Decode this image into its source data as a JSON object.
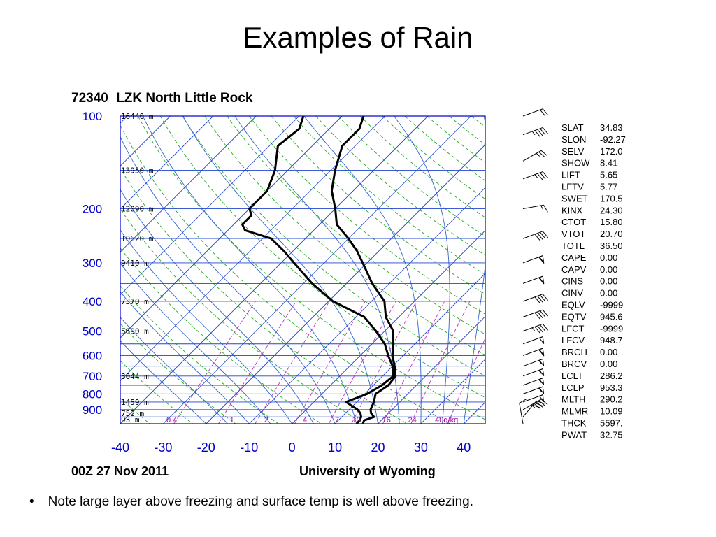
{
  "slide": {
    "title": "Examples of Rain",
    "note": "Note large layer above freezing and surface temp is well above freezing."
  },
  "chart_data": {
    "type": "line",
    "station_id": "72340",
    "station_name": "LZK North Little Rock",
    "time": "00Z 27 Nov 2011",
    "source": "University of Wyoming",
    "x_axis_ticks": [
      -40,
      -30,
      -20,
      -10,
      0,
      10,
      20,
      30,
      40
    ],
    "xlim": [
      -40,
      45
    ],
    "pressure_ticks": [
      100,
      200,
      300,
      400,
      500,
      600,
      700,
      800,
      900
    ],
    "plim": [
      100,
      1000
    ],
    "pressure_scale": "log",
    "height_labels": [
      {
        "p": 100,
        "text": "16440 m"
      },
      {
        "p": 150,
        "text": "13950 m"
      },
      {
        "p": 200,
        "text": "12090 m"
      },
      {
        "p": 250,
        "text": "10620 m"
      },
      {
        "p": 300,
        "text": "9410 m"
      },
      {
        "p": 400,
        "text": "7370 m"
      },
      {
        "p": 500,
        "text": "5690 m"
      },
      {
        "p": 700,
        "text": "3044 m"
      },
      {
        "p": 850,
        "text": "1459 m"
      },
      {
        "p": 925,
        "text": "752 m"
      },
      {
        "p": 1000,
        "text": "93 m"
      }
    ],
    "mixing_ratio_labels": [
      {
        "t": -28,
        "text": "0.4"
      },
      {
        "t": -14,
        "text": "1"
      },
      {
        "t": -6,
        "text": "2"
      },
      {
        "t": 3,
        "text": "4"
      },
      {
        "t": 10.5,
        "text": "7"
      },
      {
        "t": 15,
        "text": "10"
      },
      {
        "t": 22,
        "text": "16"
      },
      {
        "t": 28,
        "text": "24"
      },
      {
        "t": 36,
        "text": "40g/kg"
      }
    ],
    "series": [
      {
        "color": "#000000",
        "points": [
          {
            "p": 1000,
            "t": 16.5
          },
          {
            "p": 975,
            "t": 16.0
          },
          {
            "p": 950,
            "t": 17.5
          },
          {
            "p": 925,
            "t": 16.0
          },
          {
            "p": 900,
            "t": 15.0
          },
          {
            "p": 850,
            "t": 14.0
          },
          {
            "p": 800,
            "t": 12.5
          },
          {
            "p": 750,
            "t": 13.5
          },
          {
            "p": 700,
            "t": 13.0
          },
          {
            "p": 650,
            "t": 10.5
          },
          {
            "p": 600,
            "t": 7.5
          },
          {
            "p": 550,
            "t": 5.0
          },
          {
            "p": 500,
            "t": 2.0
          },
          {
            "p": 450,
            "t": -3.0
          },
          {
            "p": 400,
            "t": -7.0
          },
          {
            "p": 350,
            "t": -14.0
          },
          {
            "p": 300,
            "t": -21.0
          },
          {
            "p": 275,
            "t": -25.0
          },
          {
            "p": 250,
            "t": -30.0
          },
          {
            "p": 225,
            "t": -36.0
          },
          {
            "p": 200,
            "t": -40.0
          },
          {
            "p": 175,
            "t": -45.0
          },
          {
            "p": 150,
            "t": -49.0
          },
          {
            "p": 125,
            "t": -53.0
          },
          {
            "p": 110,
            "t": -53.0
          },
          {
            "p": 100,
            "t": -55.0
          }
        ]
      },
      {
        "color": "#000000",
        "points": [
          {
            "p": 1000,
            "t": 15.0
          },
          {
            "p": 975,
            "t": 15.0
          },
          {
            "p": 950,
            "t": 14.5
          },
          {
            "p": 925,
            "t": 13.5
          },
          {
            "p": 900,
            "t": 12.0
          },
          {
            "p": 850,
            "t": 7.5
          },
          {
            "p": 800,
            "t": 10.5
          },
          {
            "p": 750,
            "t": 12.0
          },
          {
            "p": 700,
            "t": 12.5
          },
          {
            "p": 650,
            "t": 10.0
          },
          {
            "p": 600,
            "t": 6.5
          },
          {
            "p": 550,
            "t": 3.0
          },
          {
            "p": 500,
            "t": -2.0
          },
          {
            "p": 450,
            "t": -8.0
          },
          {
            "p": 400,
            "t": -19.0
          },
          {
            "p": 350,
            "t": -28.0
          },
          {
            "p": 300,
            "t": -37.0
          },
          {
            "p": 275,
            "t": -42.0
          },
          {
            "p": 250,
            "t": -48.0
          },
          {
            "p": 235,
            "t": -56.0
          },
          {
            "p": 225,
            "t": -58.0
          },
          {
            "p": 210,
            "t": -58.0
          },
          {
            "p": 200,
            "t": -60.0
          },
          {
            "p": 175,
            "t": -60.0
          },
          {
            "p": 150,
            "t": -63.0
          },
          {
            "p": 125,
            "t": -68.0
          },
          {
            "p": 110,
            "t": -67.0
          },
          {
            "p": 100,
            "t": -69.0
          }
        ]
      }
    ],
    "wind_barbs": [
      {
        "p": 1000,
        "dir": 170,
        "kt": 10
      },
      {
        "p": 950,
        "dir": 220,
        "kt": 30
      },
      {
        "p": 900,
        "dir": 240,
        "kt": 45
      },
      {
        "p": 850,
        "dir": 250,
        "kt": 50
      },
      {
        "p": 800,
        "dir": 250,
        "kt": 55
      },
      {
        "p": 750,
        "dir": 250,
        "kt": 55
      },
      {
        "p": 700,
        "dir": 250,
        "kt": 55
      },
      {
        "p": 650,
        "dir": 250,
        "kt": 55
      },
      {
        "p": 600,
        "dir": 250,
        "kt": 60
      },
      {
        "p": 550,
        "dir": 250,
        "kt": 50
      },
      {
        "p": 500,
        "dir": 250,
        "kt": 45
      },
      {
        "p": 450,
        "dir": 250,
        "kt": 40
      },
      {
        "p": 400,
        "dir": 250,
        "kt": 40
      },
      {
        "p": 350,
        "dir": 250,
        "kt": 60
      },
      {
        "p": 300,
        "dir": 250,
        "kt": 60
      },
      {
        "p": 250,
        "dir": 250,
        "kt": 40
      },
      {
        "p": 200,
        "dir": 260,
        "kt": 15
      },
      {
        "p": 160,
        "dir": 250,
        "kt": 35
      },
      {
        "p": 140,
        "dir": 240,
        "kt": 25
      },
      {
        "p": 115,
        "dir": 250,
        "kt": 45
      },
      {
        "p": 100,
        "dir": 250,
        "kt": 20
      }
    ],
    "indices": [
      {
        "name": "SLAT",
        "value": "34.83"
      },
      {
        "name": "SLON",
        "value": "-92.27"
      },
      {
        "name": "SELV",
        "value": "172.0"
      },
      {
        "name": "SHOW",
        "value": "8.41"
      },
      {
        "name": "LIFT",
        "value": "5.65"
      },
      {
        "name": "LFTV",
        "value": "5.77"
      },
      {
        "name": "SWET",
        "value": "170.5"
      },
      {
        "name": "KINX",
        "value": "24.30"
      },
      {
        "name": "CTOT",
        "value": "15.80"
      },
      {
        "name": "VTOT",
        "value": "20.70"
      },
      {
        "name": "TOTL",
        "value": "36.50"
      },
      {
        "name": "CAPE",
        "value": "0.00"
      },
      {
        "name": "CAPV",
        "value": "0.00"
      },
      {
        "name": "CINS",
        "value": "0.00"
      },
      {
        "name": "CINV",
        "value": "0.00"
      },
      {
        "name": "EQLV",
        "value": "-9999"
      },
      {
        "name": "EQTV",
        "value": "945.6"
      },
      {
        "name": "LFCT",
        "value": "-9999"
      },
      {
        "name": "LFCV",
        "value": "948.7"
      },
      {
        "name": "BRCH",
        "value": "0.00"
      },
      {
        "name": "BRCV",
        "value": "0.00"
      },
      {
        "name": "LCLT",
        "value": "286.2"
      },
      {
        "name": "LCLP",
        "value": "953.3"
      },
      {
        "name": "MLTH",
        "value": "290.2"
      },
      {
        "name": "MLMR",
        "value": "10.09"
      },
      {
        "name": "THCK",
        "value": "5597."
      },
      {
        "name": "PWAT",
        "value": "32.75"
      }
    ]
  }
}
